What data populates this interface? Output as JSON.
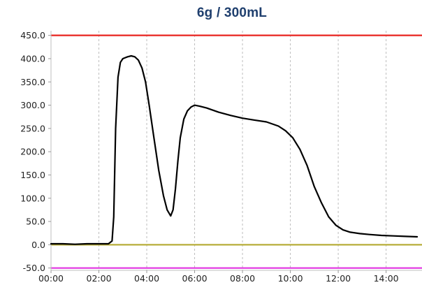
{
  "title": "6g / 300mL",
  "chart_data": {
    "type": "line",
    "title": "6g / 300mL",
    "xlabel": "",
    "ylabel": "",
    "xlim": [
      0,
      15.5
    ],
    "ylim": [
      -55,
      460
    ],
    "x_ticks": [
      {
        "value": 0,
        "label": "00:00"
      },
      {
        "value": 2,
        "label": "02:00"
      },
      {
        "value": 4,
        "label": "04:00"
      },
      {
        "value": 6,
        "label": "06:00"
      },
      {
        "value": 8,
        "label": "08:00"
      },
      {
        "value": 10,
        "label": "10:00"
      },
      {
        "value": 12,
        "label": "12:00"
      },
      {
        "value": 14,
        "label": "14:00"
      }
    ],
    "y_ticks": [
      {
        "value": 450,
        "label": "450.0"
      },
      {
        "value": 400,
        "label": "400.0"
      },
      {
        "value": 350,
        "label": "350.0"
      },
      {
        "value": 300,
        "label": "300.0"
      },
      {
        "value": 250,
        "label": "250.0"
      },
      {
        "value": 200,
        "label": "200.0"
      },
      {
        "value": 150,
        "label": "150.0"
      },
      {
        "value": 100,
        "label": "100.0"
      },
      {
        "value": 50,
        "label": "50.0"
      },
      {
        "value": 0,
        "label": "0.0"
      },
      {
        "value": -50,
        "label": "-50.0"
      }
    ],
    "grid": {
      "vertical": true,
      "horizontal": false,
      "style": "dashed"
    },
    "reference_lines": [
      {
        "y": 450,
        "color": "#e8231f"
      },
      {
        "y": 0,
        "color": "#b7ad3a"
      },
      {
        "y": -50,
        "color": "#e034e0"
      }
    ],
    "series": [
      {
        "color": "#000000",
        "x": [
          0,
          0.5,
          1.0,
          1.5,
          2.0,
          2.4,
          2.55,
          2.62,
          2.7,
          2.8,
          2.9,
          3.0,
          3.1,
          3.2,
          3.35,
          3.5,
          3.65,
          3.8,
          3.95,
          4.1,
          4.3,
          4.5,
          4.7,
          4.85,
          5.0,
          5.1,
          5.2,
          5.3,
          5.4,
          5.55,
          5.7,
          5.85,
          6.0,
          6.2,
          6.5,
          7.0,
          7.5,
          8.0,
          8.5,
          9.0,
          9.5,
          9.8,
          10.1,
          10.4,
          10.7,
          11.0,
          11.3,
          11.6,
          11.9,
          12.2,
          12.5,
          12.9,
          13.3,
          13.8,
          14.3,
          14.8,
          15.3
        ],
        "y": [
          2,
          2,
          1,
          2,
          2,
          2,
          8,
          60,
          250,
          360,
          392,
          400,
          402,
          404,
          406,
          404,
          397,
          380,
          350,
          300,
          230,
          160,
          105,
          75,
          62,
          75,
          120,
          180,
          230,
          270,
          288,
          296,
          300,
          298,
          294,
          285,
          278,
          272,
          268,
          264,
          255,
          245,
          230,
          205,
          170,
          125,
          90,
          60,
          42,
          32,
          27,
          24,
          22,
          20,
          19,
          18,
          17
        ]
      }
    ]
  }
}
